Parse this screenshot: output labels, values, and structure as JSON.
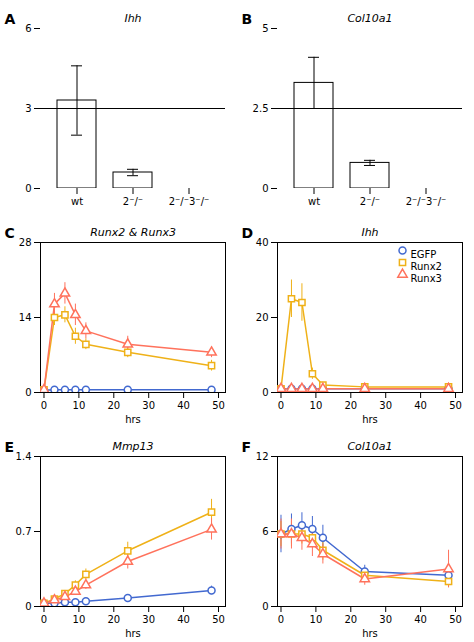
{
  "chart_data": [
    {
      "type": "bar",
      "title": "Ihh",
      "annotations": [
        "A"
      ],
      "categories": [
        "wt",
        "2⁻/⁻",
        "2⁻/⁻3⁻/⁻"
      ],
      "values": [
        3.3,
        0.6,
        0.0
      ],
      "errors": [
        1.3,
        0.12,
        0.0
      ],
      "hline": 3.0,
      "ylim": [
        0,
        6
      ],
      "yticks": [
        0,
        3,
        6
      ]
    },
    {
      "type": "bar",
      "title": "Col10a1",
      "annotations": [
        "B"
      ],
      "categories": [
        "wt",
        "2⁻/⁻",
        "2⁻/⁻3⁻/⁻"
      ],
      "values": [
        3.3,
        0.8,
        0.0
      ],
      "errors": [
        0.8,
        0.08,
        0.0
      ],
      "hline": 2.5,
      "ylim": [
        0,
        5
      ],
      "yticks": [
        0,
        2.5,
        5
      ]
    },
    {
      "type": "line",
      "title": "Runx2 & Runx3",
      "annotations": [
        "C"
      ],
      "xlabel": "hrs",
      "x": [
        0,
        3,
        6,
        9,
        12,
        24,
        48
      ],
      "xlim": [
        -1,
        52
      ],
      "xticks": [
        0,
        10,
        20,
        30,
        40,
        50
      ],
      "ylim": [
        0,
        28
      ],
      "yticks": [
        0,
        14,
        28
      ],
      "series": [
        {
          "name": "EGFP",
          "marker": "circle",
          "values": [
            0.4,
            0.5,
            0.5,
            0.5,
            0.5,
            0.5,
            0.5
          ],
          "errors": [
            0.1,
            0.2,
            0.2,
            0.2,
            0.2,
            0.2,
            0.2
          ]
        },
        {
          "name": "Runx2",
          "marker": "square",
          "values": [
            0.5,
            14.0,
            14.5,
            10.5,
            9.0,
            7.5,
            5.0
          ],
          "errors": [
            0.2,
            1.5,
            1.5,
            1.5,
            1.0,
            1.0,
            1.0
          ]
        },
        {
          "name": "Runx3",
          "marker": "triangle",
          "values": [
            0.5,
            16.5,
            18.5,
            14.5,
            11.5,
            9.0,
            7.5
          ],
          "errors": [
            0.2,
            2.0,
            2.0,
            2.0,
            1.5,
            1.5,
            1.0
          ]
        }
      ]
    },
    {
      "type": "line",
      "title": "Ihh",
      "annotations": [
        "D"
      ],
      "xlabel": "hrs",
      "legend": "upper right",
      "x": [
        0,
        3,
        6,
        9,
        12,
        24,
        48
      ],
      "xlim": [
        -1,
        52
      ],
      "xticks": [
        0,
        10,
        20,
        30,
        40,
        50
      ],
      "ylim": [
        0,
        40
      ],
      "yticks": [
        0,
        20,
        40
      ],
      "series": [
        {
          "name": "EGFP",
          "marker": "circle",
          "values": [
            1.0,
            1.0,
            1.0,
            1.0,
            1.0,
            1.0,
            1.0
          ],
          "errors": [
            0.3,
            0.4,
            0.4,
            0.3,
            0.3,
            0.3,
            0.3
          ]
        },
        {
          "name": "Runx2",
          "marker": "square",
          "values": [
            1.0,
            25.0,
            24.0,
            5.0,
            2.0,
            1.5,
            1.5
          ],
          "errors": [
            0.3,
            5.0,
            5.0,
            1.5,
            0.5,
            0.3,
            0.3
          ]
        },
        {
          "name": "Runx3",
          "marker": "triangle",
          "values": [
            1.0,
            1.0,
            1.0,
            1.0,
            1.0,
            1.0,
            1.0
          ],
          "errors": [
            0.3,
            0.4,
            0.4,
            0.4,
            0.3,
            0.3,
            0.3
          ]
        }
      ]
    },
    {
      "type": "line",
      "title": "Mmp13",
      "annotations": [
        "E"
      ],
      "xlabel": "hrs",
      "x": [
        0,
        3,
        6,
        9,
        12,
        24,
        48
      ],
      "xlim": [
        -1,
        52
      ],
      "xticks": [
        0,
        10,
        20,
        30,
        40,
        50
      ],
      "ylim": [
        0,
        1.4
      ],
      "yticks": [
        0,
        0.7,
        1.4
      ],
      "series": [
        {
          "name": "EGFP",
          "marker": "circle",
          "values": [
            0.03,
            0.03,
            0.04,
            0.04,
            0.05,
            0.08,
            0.15
          ],
          "errors": [
            0.01,
            0.01,
            0.01,
            0.01,
            0.02,
            0.03,
            0.04
          ]
        },
        {
          "name": "Runx2",
          "marker": "square",
          "values": [
            0.03,
            0.07,
            0.12,
            0.2,
            0.3,
            0.52,
            0.88
          ],
          "errors": [
            0.01,
            0.02,
            0.03,
            0.04,
            0.05,
            0.08,
            0.12
          ]
        },
        {
          "name": "Runx3",
          "marker": "triangle",
          "values": [
            0.03,
            0.06,
            0.09,
            0.14,
            0.2,
            0.42,
            0.72
          ],
          "errors": [
            0.01,
            0.02,
            0.02,
            0.03,
            0.04,
            0.07,
            0.1
          ]
        }
      ]
    },
    {
      "type": "line",
      "title": "Col10a1",
      "annotations": [
        "F"
      ],
      "xlabel": "hrs",
      "x": [
        0,
        3,
        6,
        9,
        12,
        24,
        48
      ],
      "xlim": [
        -1,
        52
      ],
      "xticks": [
        0,
        10,
        20,
        30,
        40,
        50
      ],
      "ylim": [
        0,
        12
      ],
      "yticks": [
        0,
        6,
        12
      ],
      "series": [
        {
          "name": "EGFP",
          "marker": "circle",
          "values": [
            5.8,
            6.2,
            6.5,
            6.2,
            5.5,
            2.8,
            2.5
          ],
          "errors": [
            1.5,
            1.2,
            1.0,
            1.0,
            1.0,
            0.5,
            0.8
          ]
        },
        {
          "name": "Runx2",
          "marker": "square",
          "values": [
            5.8,
            5.8,
            5.8,
            5.5,
            4.5,
            2.5,
            2.0
          ],
          "errors": [
            1.0,
            1.0,
            0.8,
            0.8,
            0.8,
            0.5,
            0.5
          ]
        },
        {
          "name": "Runx3",
          "marker": "triangle",
          "values": [
            5.8,
            5.8,
            5.5,
            5.0,
            4.2,
            2.2,
            3.0
          ],
          "errors": [
            1.2,
            1.2,
            1.0,
            1.0,
            0.8,
            0.5,
            1.5
          ]
        }
      ]
    }
  ]
}
